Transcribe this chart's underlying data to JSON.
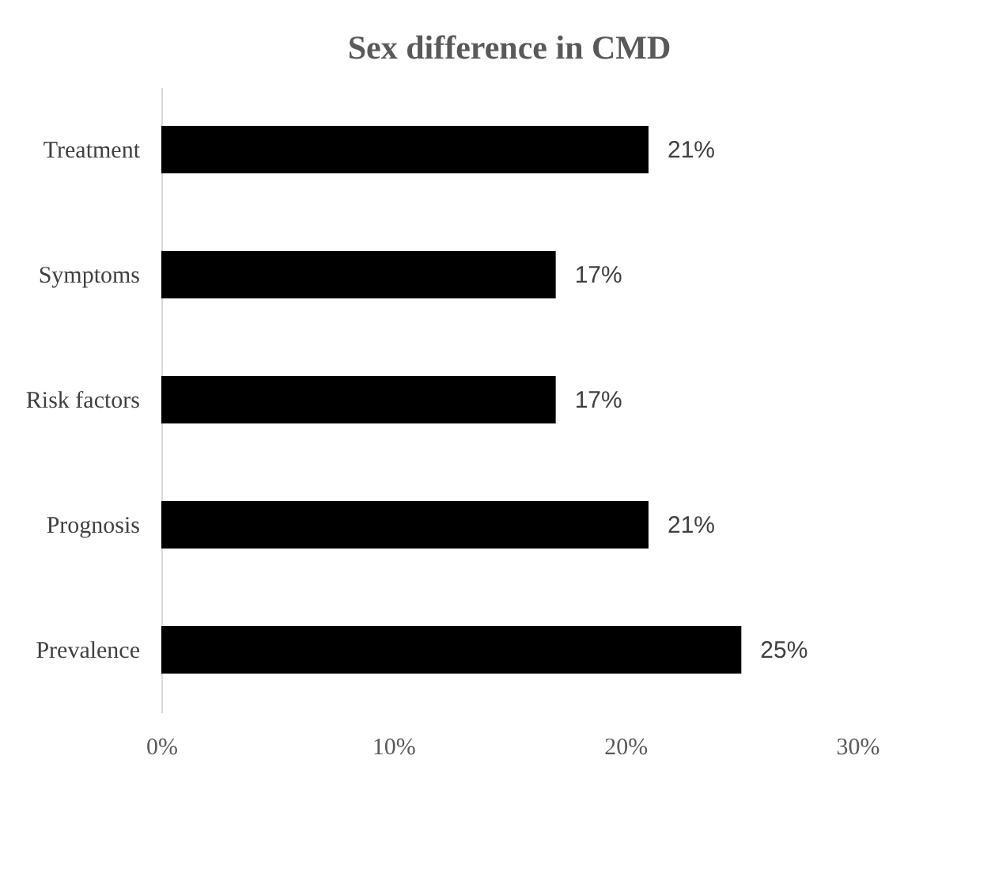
{
  "chart_data": {
    "type": "bar",
    "orientation": "horizontal",
    "title": "Sex  difference in CMD",
    "categories": [
      "Treatment",
      "Symptoms",
      "Risk factors",
      "Prognosis",
      "Prevalence"
    ],
    "values": [
      21,
      17,
      17,
      21,
      25
    ],
    "color": "#000000",
    "value_labels": [
      "21%",
      "17%",
      "17%",
      "21%",
      "25%"
    ],
    "xlim": [
      0,
      30
    ],
    "xticks": [
      {
        "value": 0,
        "label": "0%"
      },
      {
        "value": 10,
        "label": "10%"
      },
      {
        "value": 20,
        "label": "20%"
      },
      {
        "value": 30,
        "label": "30%"
      }
    ],
    "grid": false
  }
}
